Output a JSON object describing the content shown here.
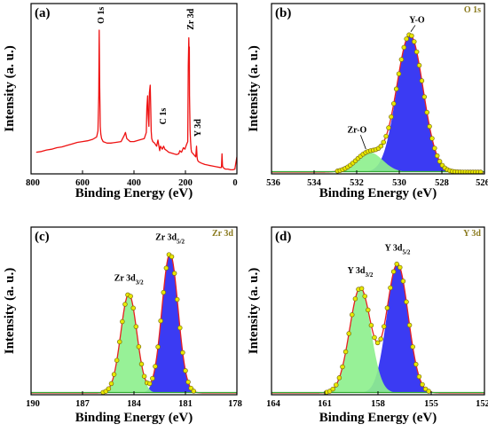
{
  "figure": {
    "background": "#ffffff"
  },
  "colors": {
    "measured": "#e8e800",
    "measured_edge": "#7a6a10",
    "fit_envelope": "#e82020",
    "survey_line": "#ee1111",
    "peak_blue": "#2a2af2",
    "peak_green": "#8ef08e",
    "baseline": "#33aa33"
  },
  "chart_data": [
    {
      "id": "a",
      "type": "line",
      "panel_label": "(a)",
      "title": "",
      "corner_label": "",
      "xlabel": "Binding Energy (eV)",
      "ylabel": "Intensity (a. u.)",
      "xlim": [
        800,
        0
      ],
      "xticks": [
        "800",
        "600",
        "400",
        "200",
        "0"
      ],
      "xtick_values": [
        800,
        600,
        400,
        200,
        0
      ],
      "ylim": [
        0,
        1
      ],
      "y_ticks_shown": false,
      "legend": "none",
      "series": [
        {
          "role": "survey",
          "color": "#ee1111",
          "x": [
            780,
            760,
            740,
            720,
            700,
            680,
            660,
            640,
            620,
            600,
            580,
            560,
            545,
            540,
            537,
            535,
            533,
            531,
            529,
            526,
            520,
            505,
            490,
            470,
            450,
            438,
            433,
            428,
            415,
            400,
            380,
            360,
            352,
            350,
            347,
            345,
            342,
            340,
            337,
            335,
            333,
            331,
            327,
            320,
            312,
            307,
            303,
            300,
            297,
            290,
            285,
            280,
            272,
            265,
            255,
            245,
            235,
            226,
            222,
            215,
            208,
            202,
            196,
            191,
            189,
            187,
            186,
            185,
            184,
            182,
            180,
            178,
            176,
            170,
            160,
            157,
            155,
            153,
            150,
            140,
            125,
            110,
            95,
            80,
            65,
            60,
            58,
            56,
            53,
            50,
            45,
            35,
            25,
            15,
            8,
            4,
            0
          ],
          "y": [
            0.13,
            0.135,
            0.145,
            0.15,
            0.16,
            0.165,
            0.175,
            0.185,
            0.195,
            0.2,
            0.205,
            0.215,
            0.23,
            0.27,
            0.5,
            0.93,
            0.55,
            0.3,
            0.25,
            0.22,
            0.2,
            0.19,
            0.19,
            0.195,
            0.2,
            0.24,
            0.26,
            0.22,
            0.2,
            0.2,
            0.21,
            0.22,
            0.26,
            0.42,
            0.5,
            0.38,
            0.3,
            0.52,
            0.57,
            0.42,
            0.27,
            0.22,
            0.2,
            0.19,
            0.17,
            0.21,
            0.17,
            0.14,
            0.17,
            0.15,
            0.17,
            0.15,
            0.14,
            0.13,
            0.125,
            0.12,
            0.115,
            0.12,
            0.14,
            0.13,
            0.16,
            0.15,
            0.18,
            0.2,
            0.7,
            0.88,
            0.78,
            0.82,
            0.5,
            0.28,
            0.2,
            0.15,
            0.13,
            0.12,
            0.1,
            0.17,
            0.1,
            0.08,
            0.07,
            0.06,
            0.05,
            0.045,
            0.04,
            0.035,
            0.03,
            0.03,
            0.12,
            0.04,
            0.03,
            0.025,
            0.02,
            0.02,
            0.015,
            0.015,
            0.02,
            0.06,
            0.1
          ]
        }
      ],
      "annotations": [
        {
          "text": "O 1s",
          "x": 531,
          "y": 0.96,
          "rotate": -90
        },
        {
          "text": "C 1s",
          "x": 290,
          "y": 0.3,
          "rotate": -90
        },
        {
          "text": "Zr 3d",
          "x": 182,
          "y": 0.92,
          "rotate": -90
        },
        {
          "text": "Y 3d",
          "x": 155,
          "y": 0.22,
          "rotate": -90
        }
      ]
    },
    {
      "id": "b",
      "type": "area",
      "panel_label": "(b)",
      "title": "",
      "corner_label": "O 1s",
      "xlabel": "Binding Energy (eV)",
      "ylabel": "Intensity (a. u.)",
      "xlim": [
        536,
        526
      ],
      "xticks": [
        "536",
        "534",
        "532",
        "530",
        "528",
        "526"
      ],
      "xtick_values": [
        536,
        534,
        532,
        530,
        528,
        526
      ],
      "ylim": [
        0,
        1
      ],
      "y_ticks_shown": false,
      "legend": "none",
      "peaks": [
        {
          "label": "Y-O",
          "center": 529.5,
          "height": 0.9,
          "sigma": 0.62,
          "color": "#2a2af2",
          "annotation_y": 0.98
        },
        {
          "label": "Zr-O",
          "center": 531.4,
          "height": 0.13,
          "sigma": 0.62,
          "color": "#8ef08e",
          "annotation_y": 0.26
        }
      ],
      "measured_points": {
        "from": 532.9,
        "to": 526.1,
        "step": 0.12
      },
      "baseline_y": 0.0
    },
    {
      "id": "c",
      "type": "area",
      "panel_label": "(c)",
      "title": "",
      "corner_label": "Zr 3d",
      "xlabel": "Binding Energy (eV)",
      "ylabel": "Intensity (a. u.)",
      "xlim": [
        190,
        178
      ],
      "xticks": [
        "190",
        "187",
        "184",
        "181",
        "178"
      ],
      "xtick_values": [
        190,
        187,
        184,
        181,
        178
      ],
      "ylim": [
        0,
        1
      ],
      "y_ticks_shown": false,
      "legend": "none",
      "peaks": [
        {
          "label": "Zr 3d5/2",
          "label_main": "Zr 3d",
          "label_sub": "5/2",
          "center": 181.9,
          "height": 0.93,
          "sigma": 0.47,
          "color": "#2a2af2",
          "annotation_y": 1.02
        },
        {
          "label": "Zr 3d3/2",
          "label_main": "Zr 3d",
          "label_sub": "3/2",
          "center": 184.3,
          "height": 0.66,
          "sigma": 0.47,
          "color": "#8ef08e",
          "annotation_y": 0.75
        }
      ],
      "measured_points": {
        "from": 185.8,
        "to": 180.4,
        "step": 0.16
      },
      "baseline_y": 0.0
    },
    {
      "id": "d",
      "type": "area",
      "panel_label": "(d)",
      "title": "",
      "corner_label": "Y 3d",
      "xlabel": "Binding Energy (eV)",
      "ylabel": "Intensity (a. u.)",
      "xlim": [
        164,
        152
      ],
      "xticks": [
        "164",
        "161",
        "158",
        "155",
        "152"
      ],
      "xtick_values": [
        164,
        161,
        158,
        155,
        152
      ],
      "ylim": [
        0,
        1
      ],
      "y_ticks_shown": false,
      "legend": "none",
      "peaks": [
        {
          "label": "Y 3d5/2",
          "label_main": "Y 3d",
          "label_sub": "5/2",
          "center": 156.9,
          "height": 0.86,
          "sigma": 0.6,
          "color": "#2a2af2",
          "annotation_y": 0.95
        },
        {
          "label": "Y 3d3/2",
          "label_main": "Y 3d",
          "label_sub": "3/2",
          "center": 159.0,
          "height": 0.7,
          "sigma": 0.6,
          "color": "#8ef08e",
          "annotation_y": 0.8
        }
      ],
      "measured_points": {
        "from": 160.9,
        "to": 155.1,
        "step": 0.18
      },
      "baseline_y": 0.0
    }
  ]
}
